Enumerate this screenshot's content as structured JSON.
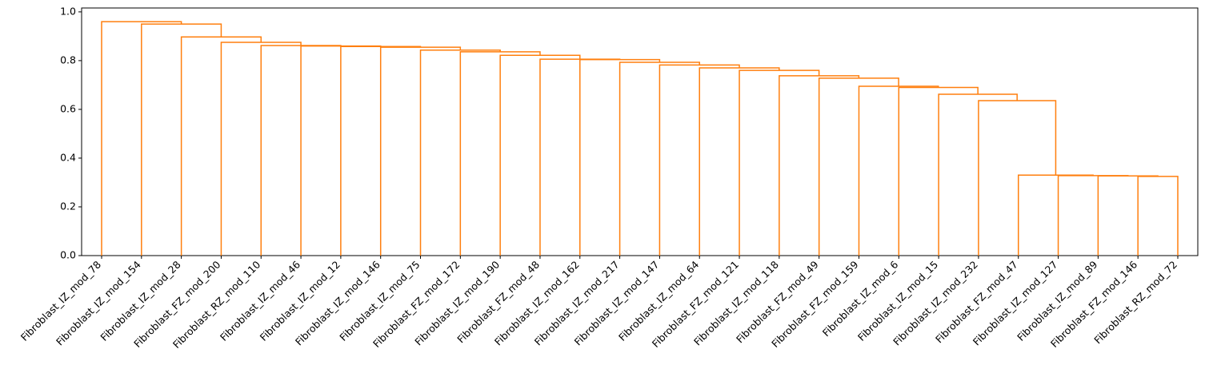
{
  "chart_data": {
    "type": "dendrogram",
    "leaves": [
      "Fibroblast_IZ_mod_78",
      "Fibroblast_IZ_mod_154",
      "Fibroblast_IZ_mod_28",
      "Fibroblast_FZ_mod_200",
      "Fibroblast_RZ_mod_110",
      "Fibroblast_IZ_mod_46",
      "Fibroblast_IZ_mod_12",
      "Fibroblast_IZ_mod_146",
      "Fibroblast_IZ_mod_75",
      "Fibroblast_FZ_mod_172",
      "Fibroblast_IZ_mod_190",
      "Fibroblast_FZ_mod_48",
      "Fibroblast_IZ_mod_162",
      "Fibroblast_IZ_mod_217",
      "Fibroblast_IZ_mod_147",
      "Fibroblast_IZ_mod_64",
      "Fibroblast_FZ_mod_121",
      "Fibroblast_IZ_mod_118",
      "Fibroblast_FZ_mod_49",
      "Fibroblast_FZ_mod_159",
      "Fibroblast_IZ_mod_6",
      "Fibroblast_IZ_mod_15",
      "Fibroblast_IZ_mod_232",
      "Fibroblast_FZ_mod_47",
      "Fibroblast_IZ_mod_127",
      "Fibroblast_IZ_mod_89",
      "Fibroblast_FZ_mod_146",
      "Fibroblast_RZ_mod_72"
    ],
    "merge_heights": [
      0.96,
      0.95,
      0.897,
      0.875,
      0.862,
      0.86,
      0.858,
      0.855,
      0.843,
      0.836,
      0.822,
      0.806,
      0.804,
      0.793,
      0.782,
      0.77,
      0.76,
      0.738,
      0.728,
      0.695,
      0.69,
      0.662,
      0.636,
      0.33,
      0.328,
      0.327,
      0.325
    ],
    "color": "#ff7f0e",
    "ylim": [
      0,
      1.016
    ],
    "yticks": [
      {
        "value": 0,
        "label": "0.0"
      },
      0.2,
      0.4,
      0.6,
      0.8,
      {
        "value": 1,
        "label": "1.0"
      }
    ]
  }
}
